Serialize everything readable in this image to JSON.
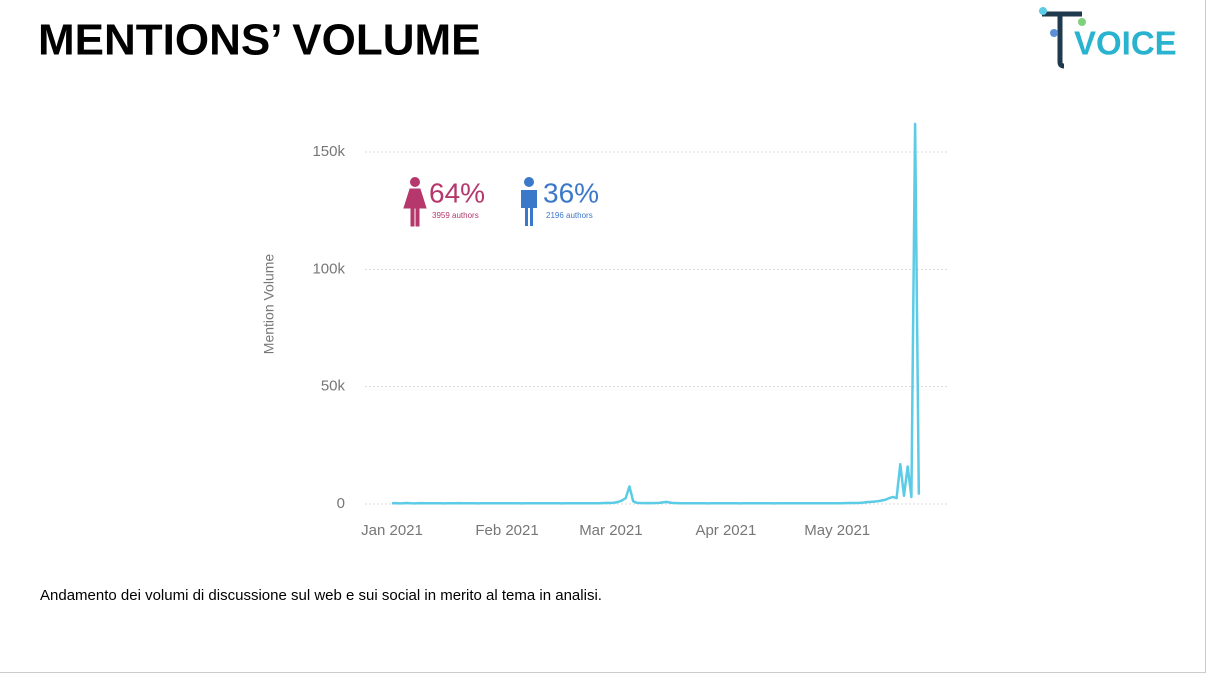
{
  "title": "MENTIONS’ VOLUME",
  "logo": "VOICE",
  "caption": "Andamento dei volumi di discussione sul web e sui social in merito al tema in analisi.",
  "gender": [
    {
      "percent": "64%",
      "authors": "3959 authors",
      "color": "#b5376b"
    },
    {
      "percent": "36%",
      "authors": "2196 authors",
      "color": "#3b78c9"
    }
  ],
  "chart_data": {
    "type": "line",
    "y_label": "Mention Volume",
    "color": "#5ccbe6",
    "grid": true,
    "ylim": [
      0,
      165000
    ],
    "yticks": [
      0,
      {
        "value": 50000,
        "label": "50k"
      },
      {
        "value": 100000,
        "label": "100k"
      },
      {
        "value": 150000,
        "label": "150k"
      }
    ],
    "categories": [
      "Jan 2021",
      null,
      null,
      null,
      null,
      null,
      null,
      null,
      null,
      null,
      null,
      null,
      null,
      null,
      null,
      null,
      null,
      null,
      null,
      null,
      null,
      null,
      null,
      null,
      null,
      null,
      null,
      null,
      null,
      null,
      null,
      "Feb 2021",
      null,
      null,
      null,
      null,
      null,
      null,
      null,
      null,
      null,
      null,
      null,
      null,
      null,
      null,
      null,
      null,
      null,
      null,
      null,
      null,
      null,
      null,
      null,
      null,
      null,
      null,
      null,
      "Mar 2021",
      null,
      null,
      null,
      null,
      null,
      null,
      null,
      null,
      null,
      null,
      null,
      null,
      null,
      null,
      null,
      null,
      null,
      null,
      null,
      null,
      null,
      null,
      null,
      null,
      null,
      null,
      null,
      null,
      null,
      null,
      "Apr 2021",
      null,
      null,
      null,
      null,
      null,
      null,
      null,
      null,
      null,
      null,
      null,
      null,
      null,
      null,
      null,
      null,
      null,
      null,
      null,
      null,
      null,
      null,
      null,
      null,
      null,
      null,
      null,
      null,
      null,
      "May 2021",
      null,
      null,
      null,
      null,
      null,
      null,
      null,
      null,
      null,
      null,
      null,
      null,
      null,
      null,
      null,
      null,
      null,
      null,
      null,
      null,
      null,
      null
    ],
    "values": [
      300,
      350,
      280,
      320,
      400,
      310,
      290,
      330,
      360,
      300,
      320,
      300,
      340,
      310,
      290,
      330,
      300,
      320,
      350,
      310,
      300,
      320,
      310,
      290,
      340,
      300,
      330,
      310,
      300,
      320,
      310,
      300,
      330,
      320,
      300,
      290,
      310,
      340,
      300,
      320,
      300,
      310,
      330,
      300,
      320,
      310,
      290,
      300,
      320,
      330,
      310,
      300,
      320,
      340,
      300,
      310,
      330,
      400,
      500,
      450,
      600,
      900,
      1500,
      2500,
      7500,
      1200,
      500,
      400,
      350,
      400,
      380,
      400,
      500,
      700,
      900,
      600,
      400,
      350,
      330,
      320,
      310,
      300,
      320,
      310,
      300,
      290,
      310,
      300,
      320,
      310,
      300,
      310,
      320,
      300,
      290,
      310,
      300,
      320,
      310,
      300,
      320,
      310,
      300,
      290,
      310,
      330,
      300,
      310,
      320,
      300,
      310,
      300,
      320,
      310,
      330,
      300,
      310,
      320,
      300,
      310,
      320,
      330,
      350,
      400,
      420,
      450,
      500,
      600,
      800,
      900,
      1000,
      1200,
      1500,
      1800,
      2500,
      3000,
      2500,
      17000,
      3500,
      16000,
      3000,
      162000,
      4000
    ]
  }
}
